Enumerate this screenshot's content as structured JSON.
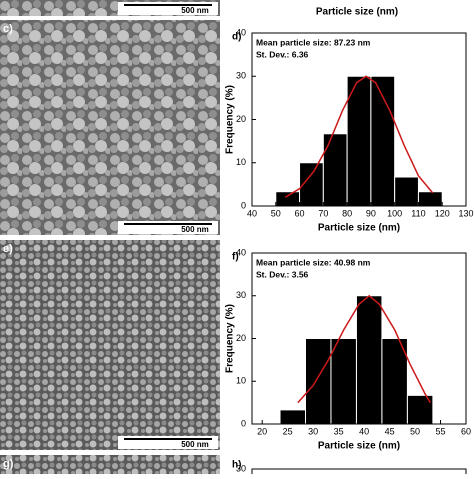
{
  "top_axis_label": "Particle size (nm)",
  "images": [
    {
      "scale": "500 nm"
    },
    {
      "label": "c)",
      "scale": "500 nm"
    },
    {
      "label": "e)",
      "scale": "500 nm"
    },
    {
      "label": "g)"
    }
  ],
  "bottom_panel": {
    "label": "h)",
    "tick": 30
  },
  "chart_data": [
    {
      "type": "histogram",
      "panel": "d)",
      "annotations": [
        "Mean particle size: 87.23 nm",
        "St. Dev.: 6.36"
      ],
      "x_label": "Particle size (nm)",
      "y_label": "Frequency (%)",
      "bins": [
        50,
        60,
        70,
        80,
        90,
        100,
        110,
        120
      ],
      "values": [
        3.3,
        10,
        16.7,
        30,
        30,
        6.7,
        3.3
      ],
      "color": "#000000",
      "fit": {
        "color": "#cc1a1a",
        "x": [
          54,
          60,
          66,
          72,
          78,
          84,
          88,
          92,
          98,
          104,
          110,
          116
        ],
        "values": [
          2,
          4,
          8,
          14,
          22,
          28.5,
          30,
          28.5,
          22,
          14,
          7,
          3
        ]
      },
      "xlim": [
        40,
        130
      ],
      "xticks": [
        40,
        50,
        60,
        70,
        80,
        90,
        100,
        110,
        120,
        130
      ],
      "ylim": [
        0,
        40
      ],
      "yticks": [
        0,
        10,
        20,
        30,
        40
      ]
    },
    {
      "type": "histogram",
      "panel": "f)",
      "annotations": [
        "Mean particle size: 40.98 nm",
        "St. Dev.: 3.56"
      ],
      "x_label": "Particle size (nm)",
      "y_label": "Frequency (%)",
      "bins": [
        23.5,
        28.5,
        33.5,
        38.5,
        43.5,
        48.5,
        53.5
      ],
      "values": [
        3.3,
        20,
        20,
        30,
        20,
        6.7
      ],
      "color": "#000000",
      "fit": {
        "color": "#cc1a1a",
        "x": [
          27,
          30,
          33,
          36,
          39,
          41,
          43,
          46,
          49,
          52,
          53
        ],
        "values": [
          5,
          9,
          15,
          22,
          28,
          30,
          28,
          22,
          14,
          7,
          5
        ]
      },
      "xlim": [
        18,
        60
      ],
      "xticks": [
        20,
        25,
        30,
        35,
        40,
        45,
        50,
        55,
        60
      ],
      "ylim": [
        0,
        40
      ],
      "yticks": [
        0,
        10,
        20,
        30,
        40
      ]
    }
  ]
}
